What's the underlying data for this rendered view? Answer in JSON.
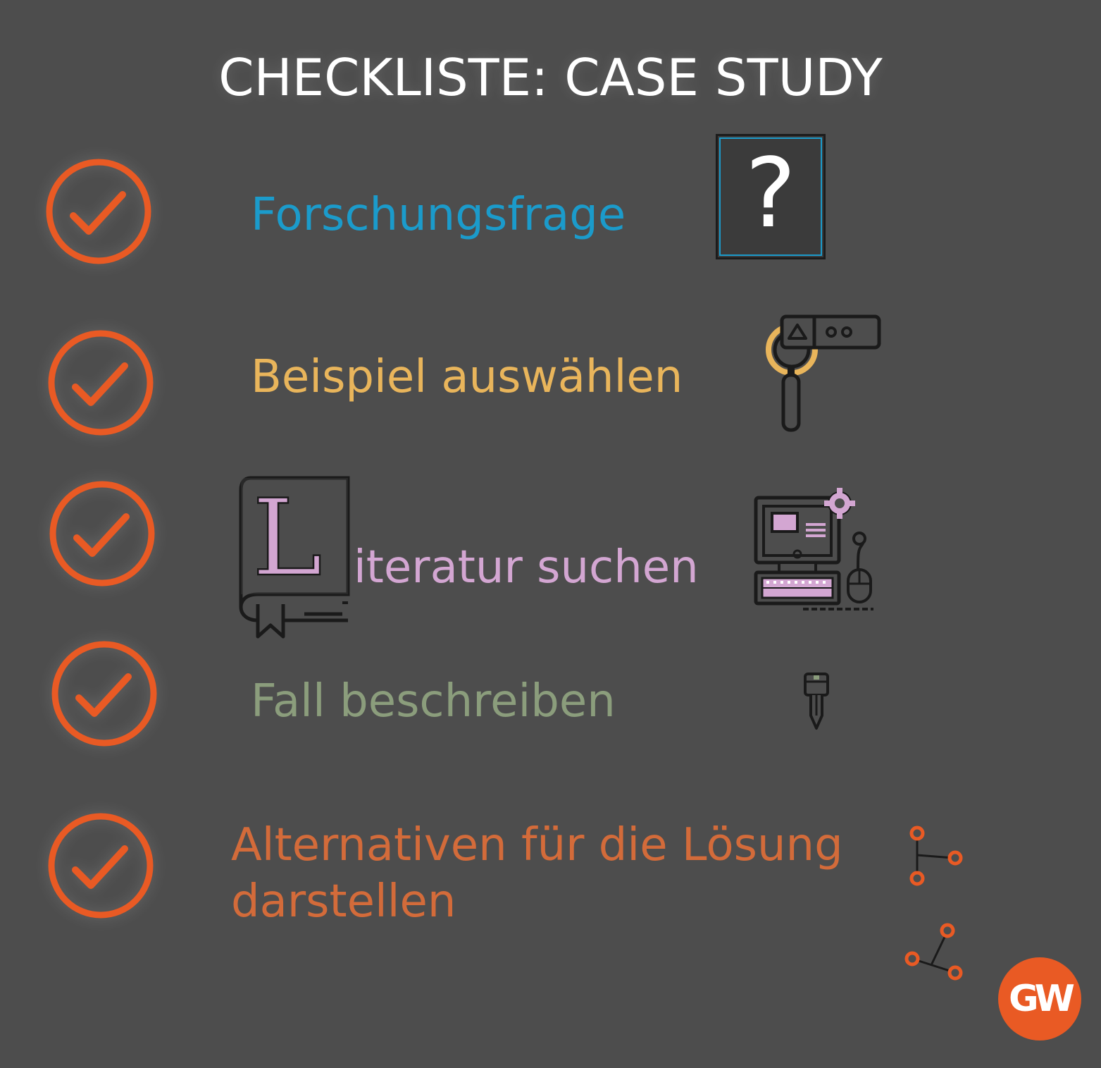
{
  "title": "CHECKLISTE: CASE STUDY",
  "colors": {
    "background": "#4d4d4d",
    "check": "#e95a24",
    "blue": "#1b9bcb",
    "yellow": "#e9b55b",
    "pink": "#d3a6d2",
    "green": "#8b9d7c",
    "orange": "#d36b3a"
  },
  "items": [
    {
      "label": "Forschungsfrage",
      "icon": "question-mark-icon",
      "checked": true
    },
    {
      "label": "Beispiel auswählen",
      "icon": "magnifier-icon",
      "checked": true
    },
    {
      "label": "iteratur suchen",
      "initial": "L",
      "icon": "computer-icon",
      "checked": true
    },
    {
      "label": "Fall beschreiben",
      "icon": "pen-icon",
      "checked": true
    },
    {
      "label_line1": "Alternativen für die Lösung",
      "label_line2": "darstellen",
      "icon": "branch-icon",
      "checked": true
    }
  ],
  "question_glyph": "?",
  "logo_text": "GW"
}
